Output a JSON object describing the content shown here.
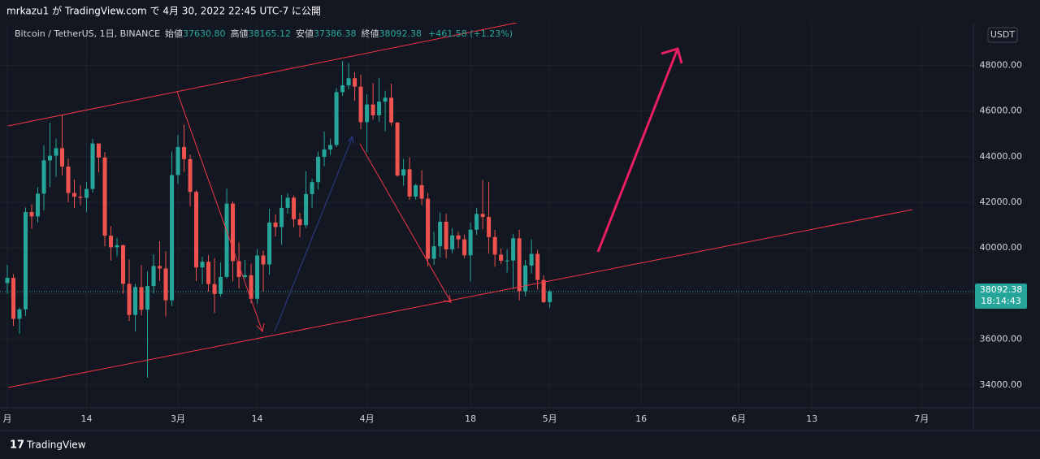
{
  "header": {
    "published": "mrkazu1 が TradingView.com で 4月 30, 2022 22:45 UTC-7 に公開",
    "symbol": "Bitcoin / TetherUS, 1日, BINANCE",
    "open_label": "始値",
    "open": "37630.80",
    "high_label": "高値",
    "high": "38165.12",
    "low_label": "安値",
    "low": "37386.38",
    "close_label": "終値",
    "close": "38092.38",
    "change": "+461.58 (+1.23%)"
  },
  "currency": "USDT",
  "price_label": "38092.38",
  "countdown": "18:14:43",
  "brand": "TradingView",
  "chart_data": {
    "type": "candlestick",
    "up_color": "#26a69a",
    "down_color": "#ef5350",
    "grid": true,
    "xlim": [
      -1.2,
      158.5
    ],
    "xticks": [
      {
        "value": 0,
        "label": "月"
      },
      {
        "value": 13,
        "label": "14"
      },
      {
        "value": 28,
        "label": "3月"
      },
      {
        "value": 41,
        "label": "14"
      },
      {
        "value": 59,
        "label": "4月"
      },
      {
        "value": 76,
        "label": "18"
      },
      {
        "value": 89,
        "label": "5月"
      },
      {
        "value": 104,
        "label": "16"
      },
      {
        "value": 120,
        "label": "6月"
      },
      {
        "value": 132,
        "label": "13"
      },
      {
        "value": 150,
        "label": "7月"
      }
    ],
    "ylim": [
      33000,
      50860
    ],
    "yticks": [
      {
        "value": 34000,
        "label": "34000.00"
      },
      {
        "value": 36000,
        "label": "36000.00"
      },
      {
        "value": 38000,
        "label": "38000.00"
      },
      {
        "value": 40000,
        "label": "40000.00"
      },
      {
        "value": 42000,
        "label": "42000.00"
      },
      {
        "value": 44000,
        "label": "44000.00"
      },
      {
        "value": 46000,
        "label": "46000.00"
      },
      {
        "value": 48000,
        "label": "48000.00"
      }
    ],
    "last_price": 38092.38,
    "open": [
      38466,
      38694,
      36896,
      37311,
      41574,
      41382,
      42380,
      43839,
      44042,
      44372,
      43565,
      42407,
      42244,
      42197,
      42586,
      44575,
      43961,
      40538,
      40031,
      40122,
      38431,
      37068,
      38286,
      37296,
      38333,
      39214,
      39105,
      37709,
      43193,
      44421,
      43893,
      42455,
      39148,
      39397,
      38420,
      37988,
      38730,
      41941,
      39422,
      38730,
      38807,
      37777,
      39671,
      39280,
      41114,
      40917,
      41757,
      42201,
      41262,
      41002,
      42364,
      42882,
      43991,
      44313,
      44511,
      46827,
      47122,
      47434,
      47067,
      45510,
      46283,
      45811,
      46407,
      46580,
      45497,
      43170,
      43444,
      42252,
      42753,
      42158,
      39530,
      40074,
      41147,
      39942,
      40551,
      40378,
      39678,
      40801,
      41493,
      41358,
      40480,
      39709,
      39441,
      39450,
      40426,
      38112,
      39235,
      39742,
      38596,
      37630.8
    ],
    "high": [
      39265,
      38855,
      37387,
      41772,
      41913,
      42656,
      44500,
      45492,
      44799,
      45821,
      43920,
      43000,
      42760,
      42876,
      44775,
      44582,
      44200,
      40960,
      40444,
      40150,
      39494,
      38429,
      39249,
      38968,
      39727,
      40300,
      39855,
      44225,
      44950,
      45400,
      44101,
      42527,
      39613,
      39693,
      39547,
      39362,
      42594,
      42039,
      40236,
      39486,
      39310,
      39947,
      39887,
      41718,
      41478,
      42325,
      42400,
      42296,
      41544,
      43361,
      43025,
      44220,
      45094,
      44792,
      46999,
      48189,
      48096,
      47700,
      47600,
      46720,
      47213,
      47444,
      46890,
      47200,
      45507,
      43900,
      43970,
      42800,
      43410,
      42414,
      40699,
      41561,
      41500,
      40870,
      40709,
      40595,
      41116,
      41760,
      42976,
      42893,
      40795,
      39980,
      39940,
      40616,
      40797,
      39474,
      40372,
      39925,
      38795,
      38165.12
    ],
    "low": [
      38000,
      36586,
      36250,
      37026,
      40844,
      41116,
      41645,
      42666,
      43117,
      43174,
      42000,
      41748,
      41870,
      41570,
      42427,
      43310,
      40073,
      39450,
      39639,
      38000,
      36800,
      36350,
      37036,
      34322,
      38014,
      38556,
      37000,
      37450,
      42809,
      43335,
      41832,
      38550,
      38407,
      38088,
      37155,
      37867,
      38656,
      38539,
      38223,
      38660,
      37578,
      37555,
      38098,
      38828,
      40500,
      40135,
      41499,
      40911,
      40467,
      40875,
      41751,
      42560,
      43579,
      44072,
      44421,
      46663,
      46950,
      46445,
      45200,
      44200,
      45620,
      45530,
      45118,
      45353,
      43121,
      42727,
      42107,
      42125,
      41868,
      39200,
      39254,
      39588,
      39551,
      39766,
      39991,
      39546,
      38536,
      40571,
      40820,
      39751,
      39177,
      39285,
      38929,
      38200,
      37702,
      37881,
      38881,
      38175,
      37578,
      37386.38
    ],
    "close": [
      38694,
      36896,
      37311,
      41574,
      41382,
      42380,
      43839,
      44042,
      44372,
      43565,
      42407,
      42244,
      42197,
      42586,
      44575,
      43961,
      40538,
      40031,
      40122,
      38431,
      37068,
      38286,
      37296,
      38333,
      39214,
      39105,
      37709,
      43193,
      44421,
      43893,
      42455,
      39148,
      39397,
      38420,
      37988,
      38730,
      41941,
      39422,
      38730,
      38807,
      37777,
      39671,
      39280,
      41114,
      40917,
      41757,
      42201,
      41262,
      41002,
      42364,
      42882,
      43991,
      44313,
      44511,
      46827,
      47122,
      47434,
      47067,
      45510,
      46283,
      45811,
      46407,
      46580,
      45497,
      43170,
      43444,
      42252,
      42753,
      42158,
      39530,
      40074,
      41147,
      39942,
      40551,
      40378,
      39678,
      40801,
      41493,
      41358,
      40480,
      39709,
      39441,
      39450,
      40426,
      38112,
      39235,
      39742,
      38596,
      37630,
      38092.38
    ]
  }
}
